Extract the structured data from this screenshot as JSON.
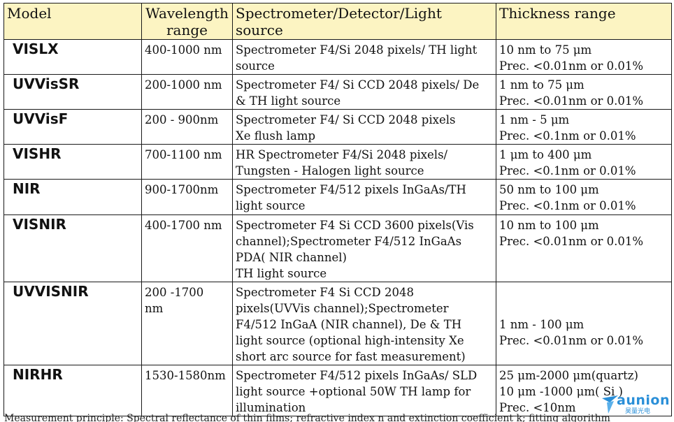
{
  "table": {
    "headers": {
      "model": "Model",
      "wavelength_1": "Wavelength",
      "wavelength_2": "range",
      "spectrometer": "Spectrometer/Detector/Light source",
      "thickness": "Thickness range"
    },
    "rows": [
      {
        "model": "VISLX",
        "wavelength": [
          "400-1000 nm"
        ],
        "spectrometer": [
          "Spectrometer F4/Si 2048 pixels/ TH light",
          "source"
        ],
        "thickness": [
          "10 nm  to 75 μm",
          "Prec. <0.01nm or 0.01%"
        ]
      },
      {
        "model": "UVVisSR",
        "wavelength": [
          "200-1000 nm"
        ],
        "spectrometer": [
          "Spectrometer F4/ Si CCD 2048 pixels/ De",
          "& TH light source"
        ],
        "thickness": [
          "1 nm to 75 μm",
          "Prec. <0.01nm or 0.01%"
        ]
      },
      {
        "model": "UVVisF",
        "wavelength": [
          "200 - 900nm"
        ],
        "spectrometer": [
          "Spectrometer F4/ Si CCD 2048 pixels",
          "Xe flush lamp"
        ],
        "thickness": [
          "1 nm - 5 μm",
          "Prec. <0.1nm or 0.01%"
        ]
      },
      {
        "model": "VISHR",
        "wavelength": [
          "700-1100 nm"
        ],
        "spectrometer": [
          "HR Spectrometer F4/Si 2048 pixels/",
          "Tungsten - Halogen light source"
        ],
        "thickness": [
          "1 μm to 400 μm",
          "Prec. <0.1nm or 0.01%"
        ]
      },
      {
        "model": "NIR",
        "wavelength": [
          "900-1700nm"
        ],
        "spectrometer": [
          "Spectrometer F4/512 pixels InGaAs/TH",
          "light source"
        ],
        "thickness": [
          "50 nm to 100 μm",
          "Prec. <0.1nm or 0.01%"
        ]
      },
      {
        "model": "VISNIR",
        "wavelength": [
          "400-1700 nm"
        ],
        "spectrometer": [
          "Spectrometer F4 Si CCD 3600 pixels(Vis",
          "channel);Spectrometer F4/512 InGaAs",
          "PDA( NIR channel)",
          "TH light source"
        ],
        "thickness": [
          "10 nm  to 100 μm",
          "Prec. <0.01nm or 0.01%"
        ]
      },
      {
        "model": "UVVISNIR",
        "wavelength": [
          "200 -1700",
          "nm"
        ],
        "spectrometer": [
          "Spectrometer F4 Si CCD 2048",
          "pixels(UVVis channel);Spectrometer",
          "F4/512 InGaA (NIR channel), De & TH",
          "light source (optional high-intensity Xe",
          "short arc source for fast measurement)"
        ],
        "thickness": [
          "",
          "",
          "1 nm - 100 μm",
          "Prec. <0.01nm or 0.01%"
        ]
      },
      {
        "model": "NIRHR",
        "wavelength": [
          "1530-1580nm"
        ],
        "spectrometer": [
          "Spectrometer F4/512 pixels InGaAs/ SLD",
          "light source +optional 50W TH lamp for",
          "illumination"
        ],
        "thickness": [
          "25 μm-2000 μm(quartz)",
          "10 μm -1000 μm( Si )",
          "Prec. <10nm"
        ]
      }
    ]
  },
  "footnote": "Measurement principle: Spectral reflectance of thin films; refractive index n and extinction coefficient k; fitting algorithm",
  "logo": {
    "brand": "aunion",
    "sub": "昊量光电",
    "color": "#2a8fd8"
  }
}
